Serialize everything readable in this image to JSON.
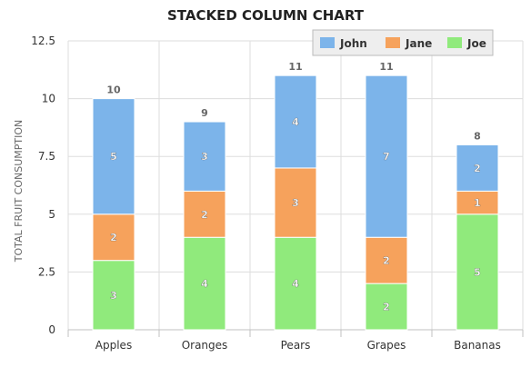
{
  "chart_data": {
    "type": "bar",
    "stacked": true,
    "title": "STACKED COLUMN CHART",
    "xlabel": "",
    "ylabel": "TOTAL FRUIT CONSUMPTION",
    "categories": [
      "Apples",
      "Oranges",
      "Pears",
      "Grapes",
      "Bananas"
    ],
    "series": [
      {
        "name": "John",
        "color": "#7cb4ea",
        "values": [
          5,
          3,
          4,
          7,
          2
        ]
      },
      {
        "name": "Jane",
        "color": "#f6a25c",
        "values": [
          2,
          2,
          3,
          2,
          1
        ]
      },
      {
        "name": "Joe",
        "color": "#90ea7c",
        "values": [
          3,
          4,
          4,
          2,
          5
        ]
      }
    ],
    "totals": [
      10,
      9,
      11,
      11,
      8
    ],
    "stack_order_bottom_to_top": [
      "Joe",
      "Jane",
      "John"
    ],
    "ylim": [
      0,
      12.5
    ],
    "yticks": [
      0,
      2.5,
      5,
      7.5,
      10,
      12.5
    ],
    "ytick_labels": [
      "0",
      "2.5",
      "5",
      "7.5",
      "10",
      "12.5"
    ],
    "grid": true,
    "legend_placement": "top-right"
  }
}
